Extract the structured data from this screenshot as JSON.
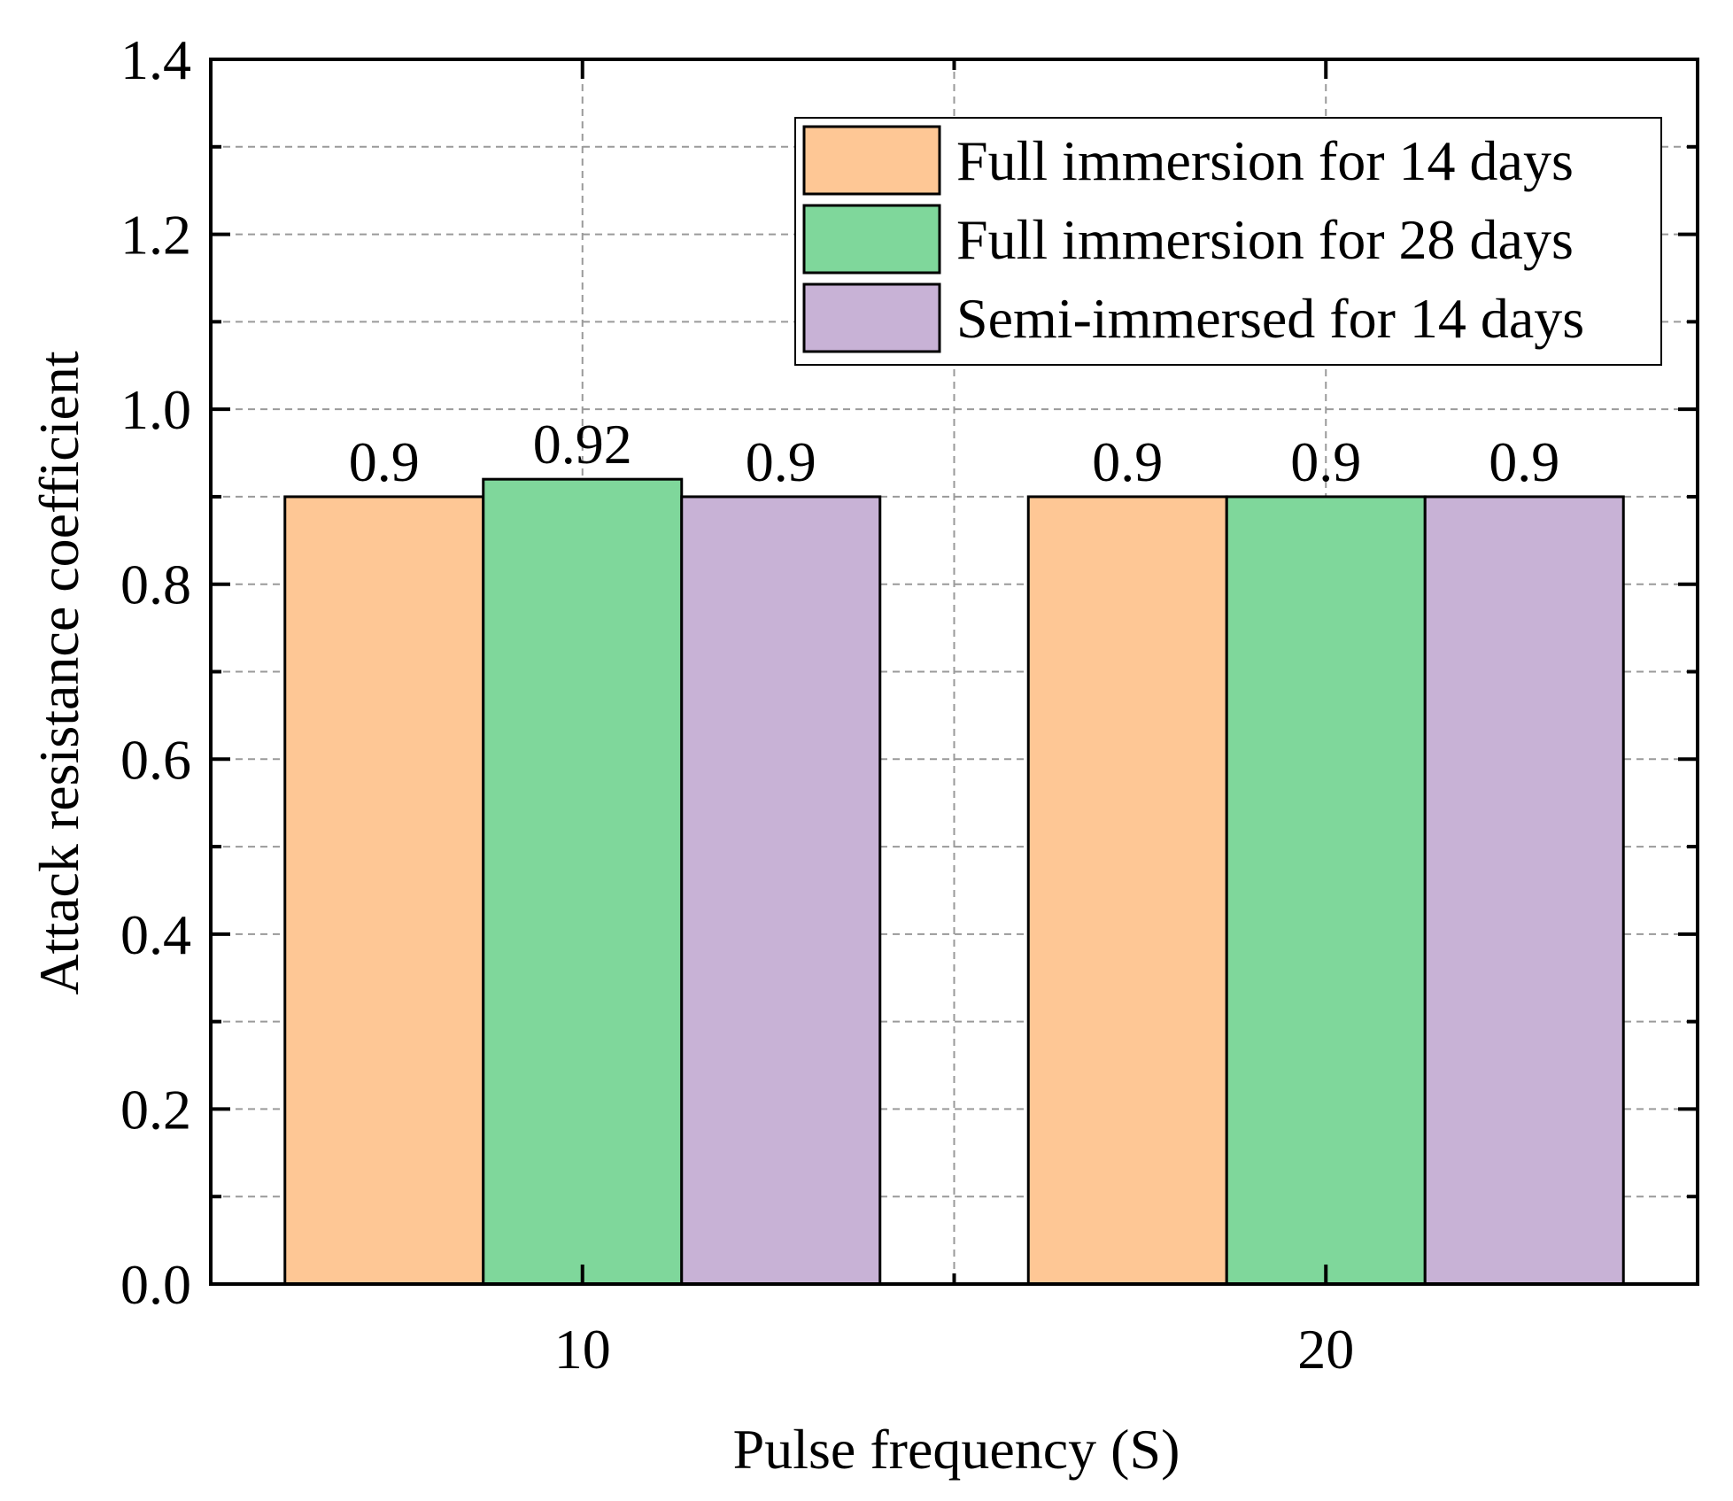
{
  "chart_data": {
    "type": "bar",
    "title": "",
    "xlabel": "Pulse frequency (S)",
    "ylabel": "Attack resistance coefficient",
    "categories": [
      "10",
      "20"
    ],
    "series": [
      {
        "name": "Full immersion for 14 days",
        "values": [
          0.9,
          0.9
        ],
        "color": "#FEC795",
        "labels": [
          "0.9",
          "0.9"
        ]
      },
      {
        "name": "Full immersion for 28 days",
        "values": [
          0.92,
          0.9
        ],
        "color": "#7FD79B",
        "labels": [
          "0.92",
          "0.9"
        ]
      },
      {
        "name": "Semi-immersed for 14 days",
        "values": [
          0.9,
          0.9
        ],
        "color": "#C8B2D6",
        "labels": [
          "0.9",
          "0.9"
        ]
      }
    ],
    "ylim": [
      0,
      1.4
    ],
    "yticks": [
      "0.0",
      "0.2",
      "0.4",
      "0.6",
      "0.8",
      "1.0",
      "1.2",
      "1.4"
    ],
    "grid": true,
    "legend_position": "top-right"
  }
}
